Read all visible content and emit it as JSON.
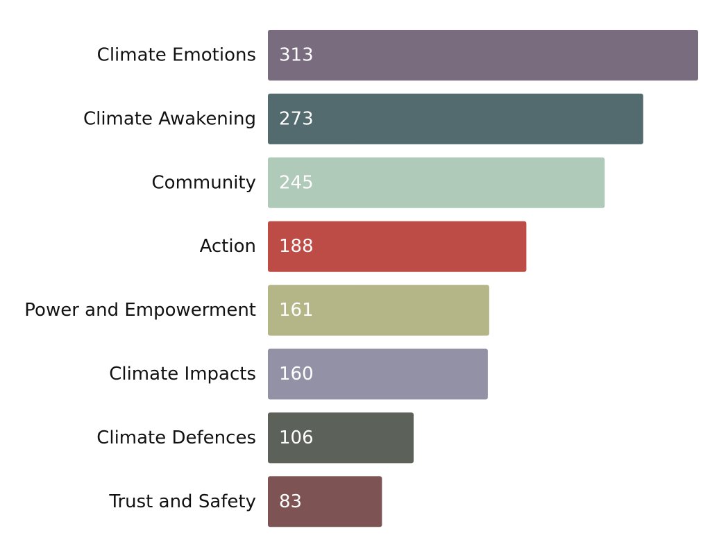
{
  "chart_data": {
    "type": "bar",
    "orientation": "horizontal",
    "categories": [
      "Climate Emotions",
      "Climate Awakening",
      "Community",
      "Action",
      "Power and Empowerment",
      "Climate Impacts",
      "Climate Defences",
      "Trust and Safety"
    ],
    "values": [
      313,
      273,
      245,
      188,
      161,
      160,
      106,
      83
    ],
    "colors": [
      "#786c7e",
      "#536b6e",
      "#afcab8",
      "#bd4b46",
      "#b4b688",
      "#9391a6",
      "#5c6259",
      "#7d5353"
    ],
    "value_label_color": "#ffffff",
    "xlim": [
      0,
      313
    ],
    "grid": false,
    "legend": "none"
  }
}
